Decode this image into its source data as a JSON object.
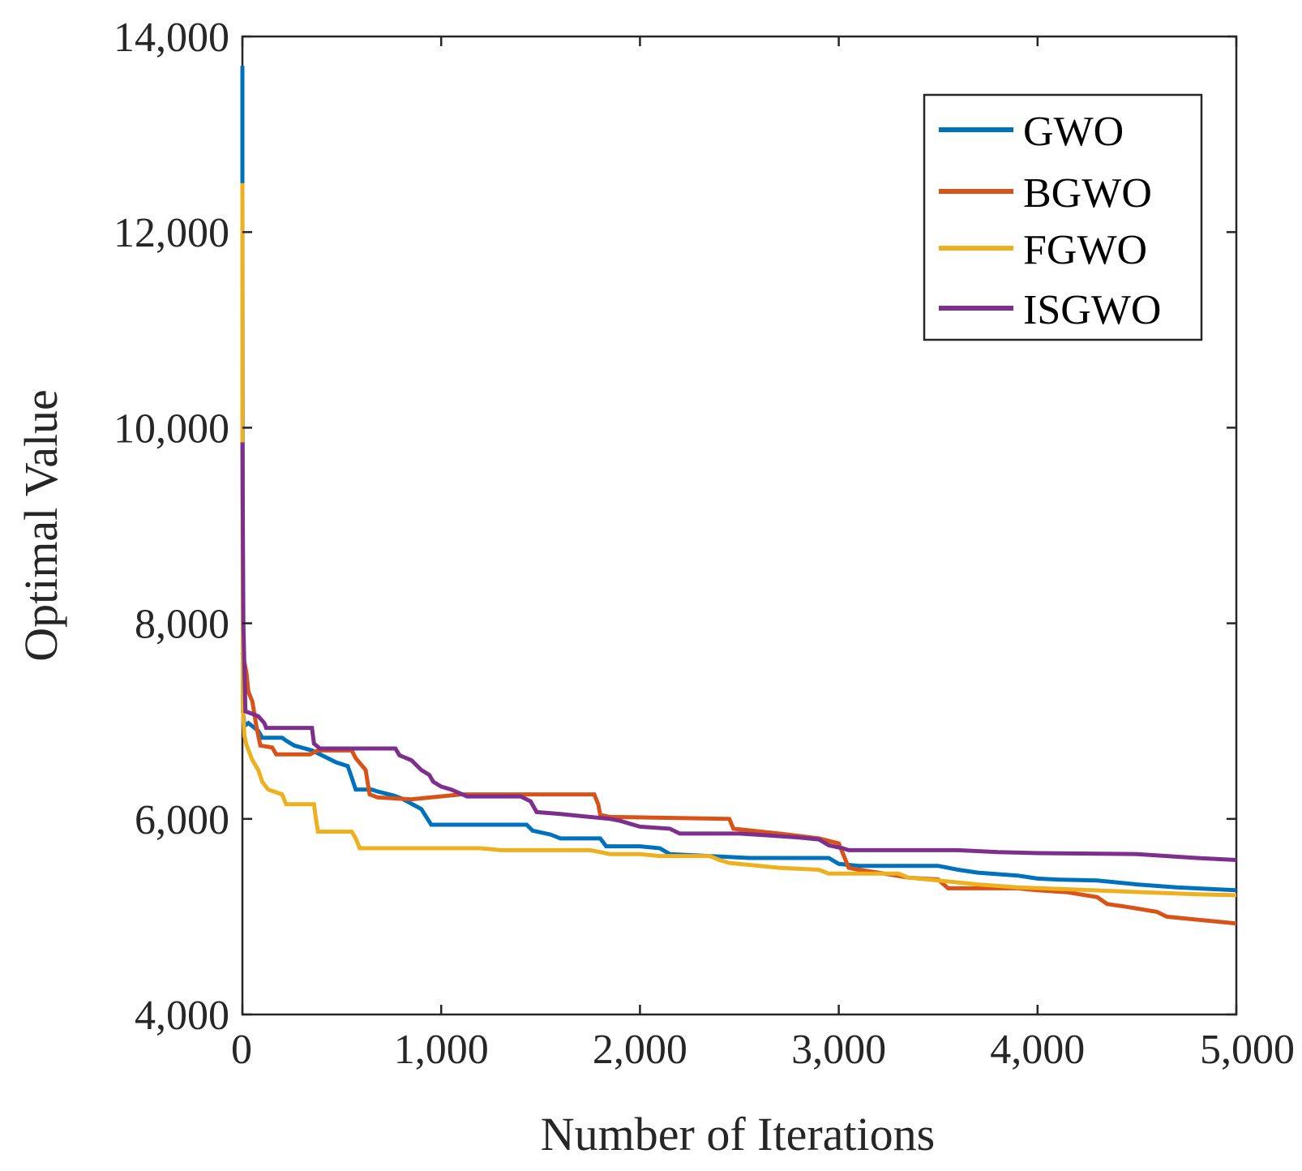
{
  "chart_data": {
    "type": "line",
    "title": "",
    "xlabel": "Number of Iterations",
    "ylabel": "Optimal Value",
    "xlim": [
      0,
      5000
    ],
    "ylim": [
      4000,
      14000
    ],
    "xticks": [
      0,
      1000,
      2000,
      3000,
      4000,
      5000
    ],
    "xtick_labels": [
      "0",
      "1,000",
      "2,000",
      "3,000",
      "4,000",
      "5,000"
    ],
    "yticks": [
      4000,
      6000,
      8000,
      10000,
      12000,
      14000
    ],
    "ytick_labels": [
      "4,000",
      "6,000",
      "8,000",
      "10,000",
      "12,000",
      "14,000"
    ],
    "grid": false,
    "legend_position": "top-right",
    "series": [
      {
        "name": "GWO",
        "color": "#0072BD",
        "points": [
          [
            0,
            13700
          ],
          [
            0,
            12500
          ],
          [
            3,
            7100
          ],
          [
            10,
            6950
          ],
          [
            30,
            6980
          ],
          [
            80,
            6900
          ],
          [
            100,
            6830
          ],
          [
            200,
            6830
          ],
          [
            220,
            6800
          ],
          [
            260,
            6750
          ],
          [
            350,
            6700
          ],
          [
            400,
            6650
          ],
          [
            470,
            6580
          ],
          [
            530,
            6540
          ],
          [
            570,
            6300
          ],
          [
            650,
            6300
          ],
          [
            680,
            6280
          ],
          [
            760,
            6240
          ],
          [
            800,
            6210
          ],
          [
            900,
            6100
          ],
          [
            950,
            5940
          ],
          [
            1430,
            5940
          ],
          [
            1460,
            5880
          ],
          [
            1550,
            5840
          ],
          [
            1600,
            5800
          ],
          [
            1800,
            5800
          ],
          [
            1830,
            5720
          ],
          [
            2000,
            5720
          ],
          [
            2100,
            5700
          ],
          [
            2150,
            5640
          ],
          [
            2550,
            5600
          ],
          [
            2950,
            5600
          ],
          [
            3000,
            5540
          ],
          [
            3100,
            5520
          ],
          [
            3500,
            5520
          ],
          [
            3600,
            5480
          ],
          [
            3700,
            5450
          ],
          [
            3900,
            5420
          ],
          [
            4000,
            5390
          ],
          [
            4100,
            5380
          ],
          [
            4300,
            5370
          ],
          [
            4500,
            5330
          ],
          [
            4700,
            5300
          ],
          [
            4900,
            5280
          ],
          [
            5000,
            5270
          ]
        ]
      },
      {
        "name": "BGWO",
        "color": "#D95319",
        "points": [
          [
            0,
            7700
          ],
          [
            5,
            7650
          ],
          [
            20,
            7500
          ],
          [
            30,
            7300
          ],
          [
            50,
            7200
          ],
          [
            70,
            6950
          ],
          [
            90,
            6750
          ],
          [
            150,
            6730
          ],
          [
            170,
            6660
          ],
          [
            340,
            6660
          ],
          [
            380,
            6700
          ],
          [
            550,
            6700
          ],
          [
            570,
            6620
          ],
          [
            620,
            6500
          ],
          [
            640,
            6250
          ],
          [
            680,
            6220
          ],
          [
            850,
            6200
          ],
          [
            950,
            6220
          ],
          [
            1100,
            6250
          ],
          [
            1770,
            6250
          ],
          [
            1790,
            6150
          ],
          [
            1800,
            6040
          ],
          [
            1850,
            6020
          ],
          [
            2450,
            6000
          ],
          [
            2470,
            5900
          ],
          [
            2700,
            5850
          ],
          [
            2900,
            5800
          ],
          [
            3000,
            5750
          ],
          [
            3050,
            5500
          ],
          [
            3100,
            5480
          ],
          [
            3200,
            5450
          ],
          [
            3350,
            5400
          ],
          [
            3500,
            5380
          ],
          [
            3550,
            5290
          ],
          [
            3900,
            5290
          ],
          [
            4000,
            5270
          ],
          [
            4150,
            5250
          ],
          [
            4300,
            5200
          ],
          [
            4350,
            5130
          ],
          [
            4450,
            5100
          ],
          [
            4600,
            5050
          ],
          [
            4650,
            5000
          ],
          [
            4800,
            4970
          ],
          [
            5000,
            4930
          ]
        ]
      },
      {
        "name": "FGWO",
        "color": "#EDB120",
        "points": [
          [
            0,
            12500
          ],
          [
            0,
            9900
          ],
          [
            3,
            7100
          ],
          [
            10,
            6850
          ],
          [
            20,
            6760
          ],
          [
            50,
            6600
          ],
          [
            80,
            6500
          ],
          [
            100,
            6380
          ],
          [
            130,
            6300
          ],
          [
            200,
            6250
          ],
          [
            220,
            6150
          ],
          [
            360,
            6150
          ],
          [
            370,
            6000
          ],
          [
            380,
            5870
          ],
          [
            550,
            5870
          ],
          [
            570,
            5800
          ],
          [
            590,
            5700
          ],
          [
            1200,
            5700
          ],
          [
            1300,
            5680
          ],
          [
            1750,
            5680
          ],
          [
            1850,
            5640
          ],
          [
            2000,
            5640
          ],
          [
            2100,
            5620
          ],
          [
            2350,
            5620
          ],
          [
            2400,
            5580
          ],
          [
            2450,
            5550
          ],
          [
            2700,
            5500
          ],
          [
            2900,
            5480
          ],
          [
            2950,
            5440
          ],
          [
            3300,
            5440
          ],
          [
            3350,
            5400
          ],
          [
            3400,
            5390
          ],
          [
            3700,
            5330
          ],
          [
            3900,
            5300
          ],
          [
            4400,
            5260
          ],
          [
            4800,
            5230
          ],
          [
            5000,
            5220
          ]
        ]
      },
      {
        "name": "ISGWO",
        "color": "#7E2F8E",
        "points": [
          [
            0,
            9850
          ],
          [
            5,
            8000
          ],
          [
            15,
            7100
          ],
          [
            80,
            7050
          ],
          [
            110,
            6980
          ],
          [
            120,
            6930
          ],
          [
            350,
            6930
          ],
          [
            360,
            6770
          ],
          [
            390,
            6720
          ],
          [
            770,
            6720
          ],
          [
            790,
            6650
          ],
          [
            850,
            6600
          ],
          [
            900,
            6500
          ],
          [
            940,
            6450
          ],
          [
            960,
            6380
          ],
          [
            1000,
            6330
          ],
          [
            1050,
            6300
          ],
          [
            1130,
            6230
          ],
          [
            1400,
            6230
          ],
          [
            1450,
            6180
          ],
          [
            1480,
            6070
          ],
          [
            1600,
            6050
          ],
          [
            1700,
            6030
          ],
          [
            1850,
            6000
          ],
          [
            1900,
            5980
          ],
          [
            2000,
            5920
          ],
          [
            2150,
            5900
          ],
          [
            2200,
            5850
          ],
          [
            2500,
            5850
          ],
          [
            2650,
            5830
          ],
          [
            2800,
            5810
          ],
          [
            2900,
            5790
          ],
          [
            2950,
            5730
          ],
          [
            3020,
            5700
          ],
          [
            3050,
            5680
          ],
          [
            3600,
            5680
          ],
          [
            3800,
            5660
          ],
          [
            4000,
            5650
          ],
          [
            4500,
            5640
          ],
          [
            4800,
            5600
          ],
          [
            5000,
            5580
          ]
        ]
      }
    ]
  }
}
